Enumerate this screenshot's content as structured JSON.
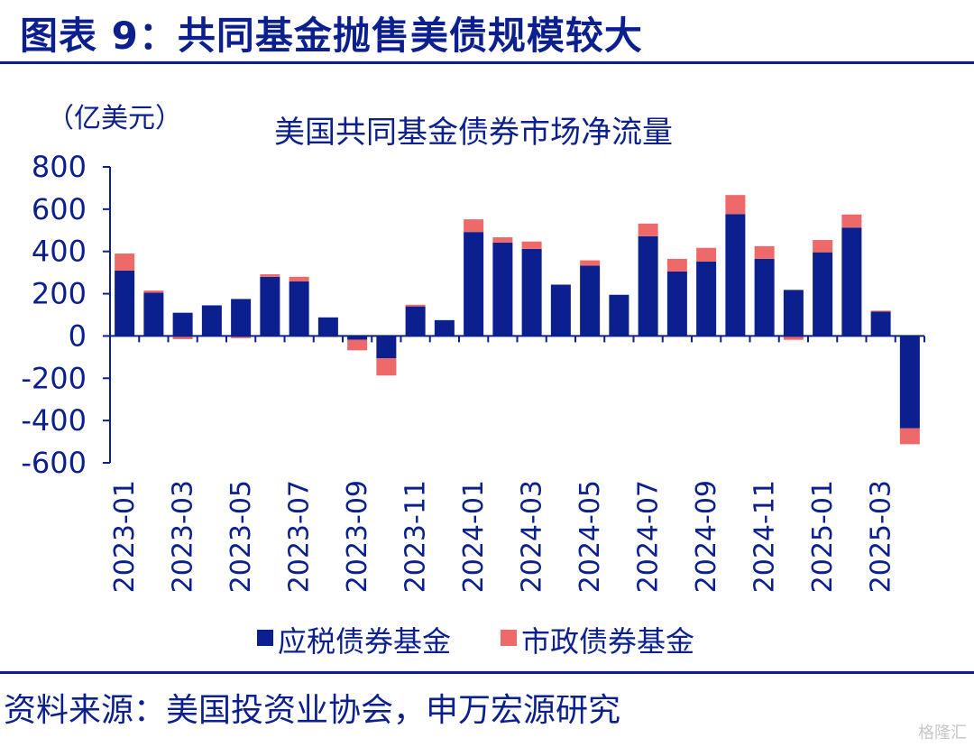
{
  "figure": {
    "title": "图表 9：共同基金抛售美债规模较大",
    "source": "资料来源：美国投资业协会，申万宏源研究",
    "watermark": "格隆汇"
  },
  "colors": {
    "taxable": "#0b1f8f",
    "municipal": "#ee6a6a",
    "text": "#0b1f8f"
  },
  "chart_data": {
    "type": "bar",
    "stacked": true,
    "title": "美国共同基金债券市场净流量",
    "unit_label": "（亿美元）",
    "categories": [
      "2023-01",
      "2023-02",
      "2023-03",
      "2023-04",
      "2023-05",
      "2023-06",
      "2023-07",
      "2023-08",
      "2023-09",
      "2023-10",
      "2023-11",
      "2023-12",
      "2024-01",
      "2024-02",
      "2024-03",
      "2024-04",
      "2024-05",
      "2024-06",
      "2024-07",
      "2024-08",
      "2024-09",
      "2024-10",
      "2024-11",
      "2024-12",
      "2025-01",
      "2025-02",
      "2025-03",
      "2025-04"
    ],
    "tick_labels": [
      "2023-01",
      "2023-03",
      "2023-05",
      "2023-07",
      "2023-09",
      "2023-11",
      "2024-01",
      "2024-03",
      "2024-05",
      "2024-07",
      "2024-09",
      "2024-11",
      "2025-01",
      "2025-03"
    ],
    "series": [
      {
        "name": "应税债券基金",
        "values": [
          310,
          205,
          110,
          145,
          175,
          280,
          258,
          88,
          -18,
          -105,
          140,
          75,
          492,
          442,
          412,
          243,
          333,
          195,
          472,
          305,
          352,
          577,
          365,
          218,
          396,
          513,
          115,
          -437
        ]
      },
      {
        "name": "市政债券基金",
        "values": [
          80,
          10,
          -15,
          0,
          -10,
          12,
          22,
          -5,
          -50,
          -82,
          8,
          0,
          60,
          25,
          35,
          0,
          25,
          0,
          60,
          60,
          65,
          90,
          60,
          -18,
          58,
          62,
          5,
          -75
        ]
      }
    ],
    "ylim": [
      -600,
      800
    ],
    "yticks": [
      800,
      600,
      400,
      200,
      0,
      -200,
      -400,
      -600
    ],
    "legend_position": "bottom",
    "grid": false
  }
}
